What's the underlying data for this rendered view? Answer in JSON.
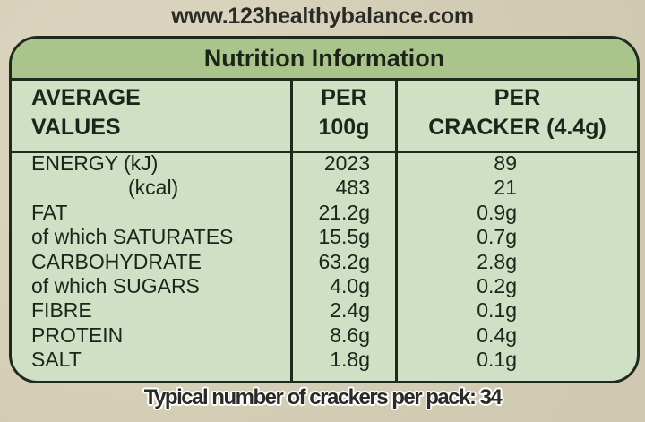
{
  "website": "www.123healthybalance.com",
  "title": "Nutrition Information",
  "headers": {
    "col1": [
      "AVERAGE",
      "VALUES"
    ],
    "col2": [
      "PER",
      "100g"
    ],
    "col3": [
      "PER",
      "CRACKER (4.4g)"
    ]
  },
  "rows": [
    {
      "name": "ENERGY (kJ)",
      "per100g": "2023",
      "perCracker": "89"
    },
    {
      "name": "(kcal)",
      "per100g": "483",
      "perCracker": "21"
    },
    {
      "name": "FAT",
      "per100g": "21.2g",
      "perCracker": "0.9g"
    },
    {
      "name": "of which SATURATES",
      "per100g": "15.5g",
      "perCracker": "0.7g"
    },
    {
      "name": "CARBOHYDRATE",
      "per100g": "63.2g",
      "perCracker": "2.8g"
    },
    {
      "name": "of which SUGARS",
      "per100g": "4.0g",
      "perCracker": "0.2g"
    },
    {
      "name": "FIBRE",
      "per100g": "2.4g",
      "perCracker": "0.1g"
    },
    {
      "name": "PROTEIN",
      "per100g": "8.6g",
      "perCracker": "0.4g"
    },
    {
      "name": "SALT",
      "per100g": "1.8g",
      "perCracker": "0.1g"
    }
  ],
  "footer": "Typical number of crackers per pack: 34",
  "colors": {
    "header_band": "#a9c58c",
    "table_body": "#cfe0c4",
    "border": "#1f2a1c",
    "background": "#d8d1ba"
  }
}
